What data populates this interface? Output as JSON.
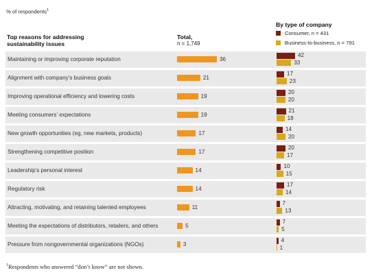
{
  "header": {
    "unit_note": "% of respondents",
    "unit_note_sup": "1",
    "col1_title_line1": "Top reasons for addressing",
    "col1_title_line2": "sustainability issues",
    "col2_title": "Total,",
    "col2_subtitle": "n = 1,749",
    "col3_title": "By type of company"
  },
  "legend": {
    "consumer": "Consumer, n = 431",
    "b2b": "Business-to-business, n = 791"
  },
  "colors": {
    "total": "#f0961e",
    "consumer": "#7a1f12",
    "b2b": "#d9a81c",
    "band": "#e9e9e9"
  },
  "chart_data": {
    "type": "bar",
    "categories": [
      "Maintaining or improving corporate reputation",
      "Alignment with company’s business goals",
      "Improving operational efficiency and lowering costs",
      "Meeting consumers’ expectations",
      "New growth opportunities (eg, new markets, products)",
      "Strengthening competitive position",
      "Leadership’s personal interest",
      "Regulatory risk",
      "Attracting, motivating, and retaining talented employees",
      "Meeting the expectations of distributors, retailers, and others",
      "Pressure from nongovernmental organizations (NGOs)"
    ],
    "series": [
      {
        "name": "Total, n = 1,749",
        "values": [
          36,
          21,
          19,
          19,
          17,
          17,
          14,
          14,
          11,
          5,
          3
        ]
      },
      {
        "name": "Consumer, n = 431",
        "values": [
          42,
          17,
          20,
          21,
          14,
          20,
          10,
          17,
          7,
          7,
          4
        ]
      },
      {
        "name": "Business-to-business, n = 791",
        "values": [
          33,
          23,
          20,
          18,
          20,
          17,
          15,
          14,
          13,
          5,
          1
        ]
      }
    ],
    "title": "",
    "xlabel": "",
    "ylabel": "% of respondents"
  },
  "footnote": {
    "marker": "1",
    "text": "Respondents who answered “don’t know” are not shown."
  }
}
